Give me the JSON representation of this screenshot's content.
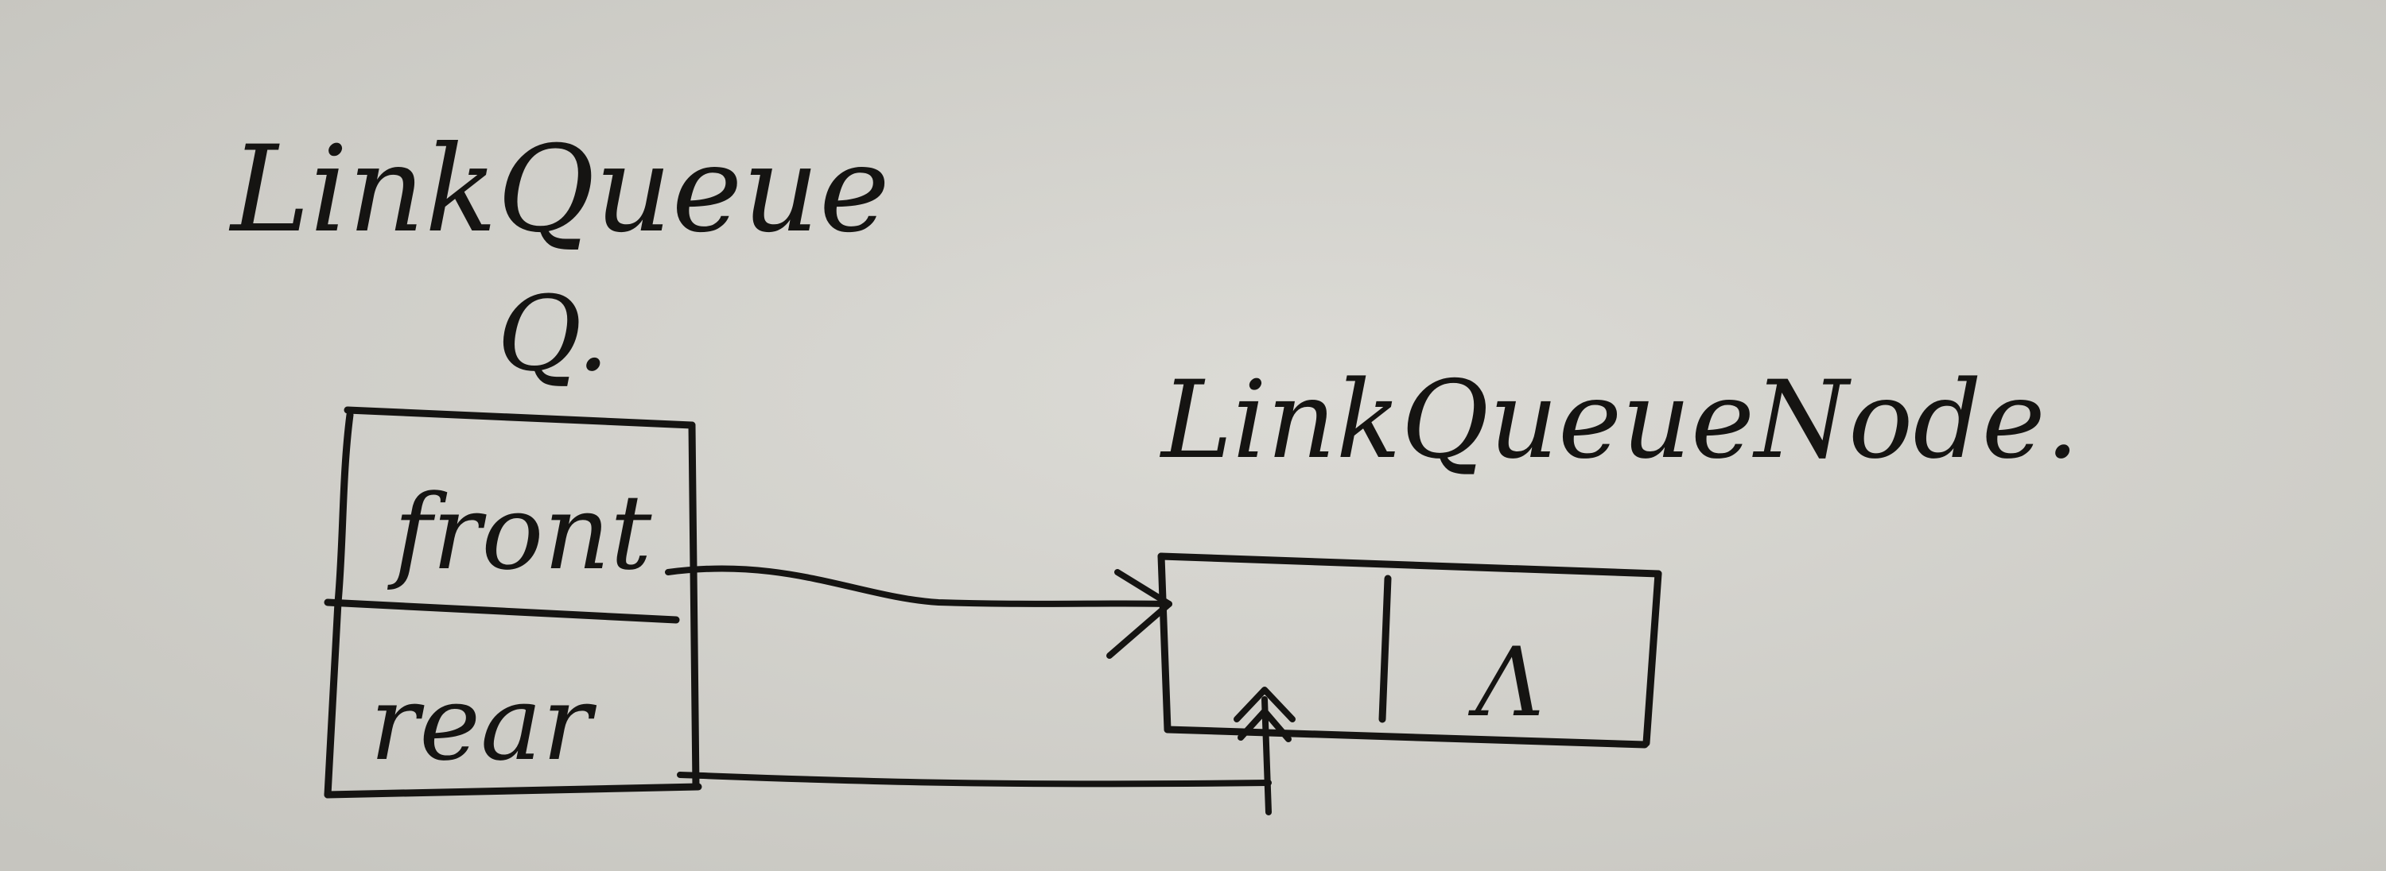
{
  "colors": {
    "paper": "#d3d2cd",
    "ink": "#151412"
  },
  "queue": {
    "type_label": "LinkQueue",
    "var_label": "Q.",
    "fields": {
      "front": "front",
      "rear": "rear"
    }
  },
  "node": {
    "type_label": "LinkQueueNode.",
    "next_value": "Λ"
  }
}
